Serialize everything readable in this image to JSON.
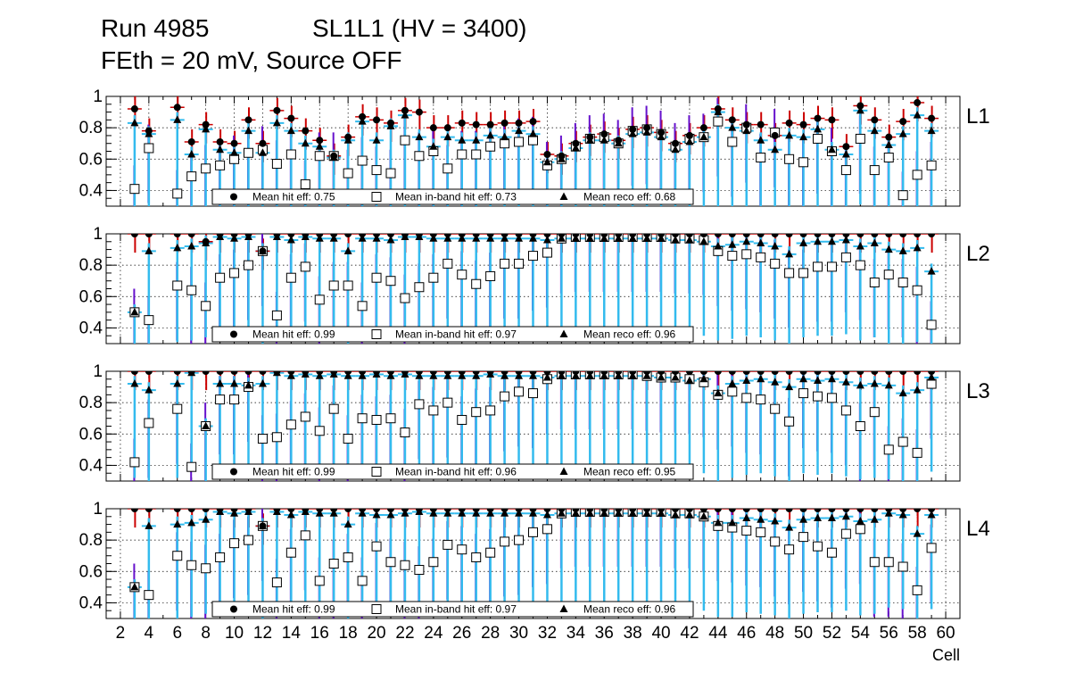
{
  "title_line1_left": "Run 4985",
  "title_line1_right": "SL1L1 (HV = 3400)",
  "title_line2": "FEth = 20 mV, Source OFF",
  "colors": {
    "hit": "#000000",
    "inband": "#ffffff",
    "reco": "#000000",
    "err_red": "#cc0000",
    "err_cyan": "#33bbee",
    "err_purple": "#6611cc",
    "grid": "#000000"
  },
  "chart_data": {
    "type": "scatter",
    "xlabel": "Cell",
    "xlim": [
      1,
      61
    ],
    "x_ticks": [
      2,
      4,
      6,
      8,
      10,
      12,
      14,
      16,
      18,
      20,
      22,
      24,
      26,
      28,
      30,
      32,
      34,
      36,
      38,
      40,
      42,
      44,
      46,
      48,
      50,
      52,
      54,
      56,
      58,
      60
    ],
    "ylim": [
      0.3,
      1.0
    ],
    "y_ticks": [
      0.4,
      0.6,
      0.8,
      1
    ],
    "y_tick_labels": [
      "0.4",
      "0.6",
      "0.8",
      "1"
    ],
    "cells": [
      3,
      4,
      6,
      7,
      8,
      9,
      10,
      11,
      12,
      13,
      14,
      15,
      16,
      17,
      18,
      19,
      20,
      21,
      22,
      23,
      24,
      25,
      26,
      27,
      28,
      29,
      30,
      31,
      32,
      33,
      34,
      35,
      36,
      37,
      38,
      39,
      40,
      41,
      42,
      43,
      44,
      45,
      46,
      47,
      48,
      49,
      50,
      51,
      52,
      53,
      54,
      55,
      56,
      57,
      58,
      59
    ],
    "panels": [
      {
        "label": "L1",
        "legend": {
          "hit": "Mean hit  eff: 0.75",
          "inband": "Mean in-band hit eff: 0.73",
          "reco": "Mean reco eff: 0.68"
        },
        "hit": [
          0.92,
          0.78,
          0.93,
          0.71,
          0.82,
          0.71,
          0.7,
          0.85,
          0.7,
          0.91,
          0.86,
          0.78,
          0.72,
          0.62,
          0.74,
          0.87,
          0.85,
          0.83,
          0.91,
          0.9,
          0.8,
          0.8,
          0.83,
          0.82,
          0.82,
          0.83,
          0.83,
          0.84,
          0.63,
          0.62,
          0.7,
          0.74,
          0.76,
          0.72,
          0.79,
          0.8,
          0.77,
          0.7,
          0.75,
          0.8,
          0.92,
          0.85,
          0.82,
          0.82,
          0.75,
          0.83,
          0.82,
          0.86,
          0.85,
          0.68,
          0.94,
          0.85,
          0.74,
          0.84,
          0.96,
          0.86
        ],
        "inband": [
          0.41,
          0.67,
          0.38,
          0.49,
          0.54,
          0.56,
          0.6,
          0.64,
          0.66,
          0.57,
          0.63,
          0.44,
          0.62,
          0.62,
          0.51,
          0.59,
          0.53,
          0.51,
          0.72,
          0.62,
          0.65,
          0.54,
          0.63,
          0.63,
          0.68,
          0.7,
          0.71,
          0.72,
          0.56,
          0.6,
          0.68,
          0.73,
          0.74,
          0.7,
          0.78,
          0.79,
          0.76,
          0.68,
          0.73,
          0.74,
          0.84,
          0.71,
          0.8,
          0.61,
          0.77,
          0.6,
          0.58,
          0.73,
          0.65,
          0.53,
          0.73,
          0.53,
          0.61,
          0.37,
          0.5,
          0.56
        ],
        "reco": [
          0.83,
          0.76,
          0.85,
          0.63,
          0.79,
          0.66,
          0.64,
          0.78,
          0.64,
          0.83,
          0.78,
          0.7,
          0.68,
          0.61,
          0.72,
          0.84,
          0.72,
          0.81,
          0.88,
          0.74,
          0.68,
          0.74,
          0.72,
          0.72,
          0.75,
          0.74,
          0.78,
          0.76,
          0.58,
          0.6,
          0.67,
          0.72,
          0.72,
          0.7,
          0.76,
          0.77,
          0.74,
          0.66,
          0.71,
          0.74,
          0.9,
          0.8,
          0.78,
          0.72,
          0.66,
          0.75,
          0.74,
          0.79,
          0.66,
          0.63,
          0.91,
          0.78,
          0.69,
          0.76,
          0.88,
          0.78
        ]
      },
      {
        "label": "L2",
        "legend": {
          "hit": "Mean hit  eff: 0.99",
          "inband": "Mean in-band hit eff: 0.97",
          "reco": "Mean reco eff: 0.96"
        },
        "hit": [
          1,
          1,
          1,
          1,
          0.95,
          1,
          1,
          1,
          0.89,
          1,
          1,
          1,
          1,
          1,
          1,
          1,
          1,
          1,
          1,
          1,
          1,
          1,
          1,
          1,
          1,
          1,
          1,
          1,
          1,
          1,
          1,
          1,
          1,
          1,
          1,
          1,
          1,
          1,
          1,
          1,
          1,
          1,
          1,
          1,
          1,
          1,
          1,
          1,
          1,
          1,
          1,
          1,
          1,
          1,
          1,
          1
        ],
        "inband": [
          0.5,
          0.45,
          0.67,
          0.64,
          0.54,
          0.72,
          0.75,
          0.8,
          0.89,
          0.48,
          0.72,
          0.79,
          0.58,
          0.67,
          0.67,
          0.54,
          0.72,
          0.7,
          0.59,
          0.66,
          0.72,
          0.81,
          0.74,
          0.68,
          0.73,
          0.81,
          0.81,
          0.86,
          0.88,
          0.97,
          0.98,
          0.98,
          0.98,
          0.98,
          0.98,
          0.98,
          0.98,
          0.97,
          0.97,
          0.96,
          0.89,
          0.86,
          0.87,
          0.85,
          0.81,
          0.75,
          0.75,
          0.79,
          0.79,
          0.85,
          0.8,
          0.69,
          0.74,
          0.69,
          0.64,
          0.42
        ],
        "reco": [
          0.5,
          0.89,
          0.91,
          0.92,
          0.94,
          0.98,
          0.97,
          0.98,
          0.89,
          0.98,
          0.96,
          0.98,
          0.97,
          0.97,
          0.89,
          0.97,
          0.97,
          0.96,
          0.98,
          0.98,
          0.97,
          0.97,
          0.97,
          0.97,
          0.97,
          0.97,
          0.97,
          0.97,
          0.96,
          0.97,
          0.97,
          0.97,
          0.97,
          0.97,
          0.97,
          0.97,
          0.97,
          0.96,
          0.96,
          0.95,
          0.92,
          0.93,
          0.95,
          0.94,
          0.92,
          0.87,
          0.94,
          0.95,
          0.95,
          0.96,
          0.92,
          0.94,
          0.9,
          0.89,
          0.91,
          0.76
        ]
      },
      {
        "label": "L3",
        "legend": {
          "hit": "Mean hit  eff: 0.99",
          "inband": "Mean in-band hit eff: 0.96",
          "reco": "Mean reco eff: 0.95"
        },
        "hit": [
          1,
          1,
          1,
          1,
          1,
          1,
          1,
          1,
          1,
          1,
          1,
          1,
          1,
          1,
          1,
          1,
          1,
          1,
          1,
          1,
          1,
          1,
          1,
          1,
          1,
          1,
          1,
          1,
          1,
          1,
          1,
          1,
          1,
          1,
          1,
          1,
          1,
          1,
          1,
          1,
          1,
          1,
          1,
          1,
          1,
          1,
          1,
          1,
          1,
          1,
          1,
          1,
          1,
          1,
          1,
          1
        ],
        "inband": [
          0.42,
          0.67,
          0.76,
          0.39,
          0.65,
          0.82,
          0.82,
          0.9,
          0.57,
          0.58,
          0.66,
          0.71,
          0.62,
          0.76,
          0.57,
          0.7,
          0.69,
          0.7,
          0.61,
          0.79,
          0.75,
          0.8,
          0.69,
          0.74,
          0.75,
          0.84,
          0.87,
          0.86,
          0.95,
          0.98,
          0.98,
          0.98,
          0.98,
          0.98,
          0.98,
          0.97,
          0.96,
          0.96,
          0.95,
          0.93,
          0.85,
          0.87,
          0.83,
          0.82,
          0.76,
          0.68,
          0.86,
          0.84,
          0.83,
          0.75,
          0.65,
          0.74,
          0.5,
          0.55,
          0.48,
          0.92
        ],
        "reco": [
          0.92,
          0.88,
          0.92,
          0.99,
          0.65,
          0.92,
          0.92,
          0.91,
          0.92,
          0.99,
          0.97,
          0.98,
          0.97,
          0.98,
          0.97,
          0.97,
          0.98,
          0.97,
          0.98,
          0.97,
          0.97,
          0.97,
          0.97,
          0.97,
          0.98,
          0.97,
          0.97,
          0.97,
          0.96,
          0.97,
          0.97,
          0.97,
          0.97,
          0.97,
          0.97,
          0.97,
          0.96,
          0.96,
          0.94,
          0.95,
          0.86,
          0.92,
          0.94,
          0.95,
          0.93,
          0.9,
          0.95,
          0.94,
          0.95,
          0.93,
          0.91,
          0.92,
          0.91,
          0.86,
          0.88,
          0.96
        ]
      },
      {
        "label": "L4",
        "legend": {
          "hit": "Mean hit  eff: 0.99",
          "inband": "Mean in-band hit eff: 0.97",
          "reco": "Mean reco eff: 0.96"
        },
        "hit": [
          1,
          1,
          1,
          1,
          1,
          1,
          1,
          1,
          0.89,
          1,
          1,
          1,
          1,
          1,
          1,
          1,
          1,
          1,
          1,
          1,
          1,
          1,
          1,
          1,
          1,
          1,
          1,
          1,
          1,
          1,
          1,
          1,
          1,
          1,
          1,
          1,
          1,
          1,
          1,
          1,
          1,
          1,
          1,
          1,
          1,
          1,
          1,
          1,
          1,
          1,
          1,
          1,
          1,
          1,
          1,
          1
        ],
        "inband": [
          0.5,
          0.45,
          0.7,
          0.64,
          0.62,
          0.69,
          0.78,
          0.8,
          0.89,
          0.53,
          0.72,
          0.83,
          0.54,
          0.65,
          0.69,
          0.54,
          0.76,
          0.66,
          0.64,
          0.61,
          0.66,
          0.77,
          0.74,
          0.69,
          0.72,
          0.79,
          0.8,
          0.85,
          0.87,
          0.97,
          0.98,
          0.98,
          0.98,
          0.98,
          0.98,
          0.98,
          0.98,
          0.97,
          0.97,
          0.95,
          0.89,
          0.88,
          0.86,
          0.85,
          0.79,
          0.74,
          0.82,
          0.76,
          0.72,
          0.84,
          0.87,
          0.66,
          0.66,
          0.63,
          0.48,
          0.75
        ],
        "reco": [
          0.5,
          0.89,
          0.9,
          0.91,
          0.93,
          0.98,
          0.97,
          0.98,
          0.89,
          0.98,
          0.96,
          0.98,
          0.97,
          0.97,
          0.9,
          0.97,
          0.96,
          0.96,
          0.97,
          0.98,
          0.97,
          0.97,
          0.97,
          0.97,
          0.97,
          0.97,
          0.97,
          0.97,
          0.96,
          0.97,
          0.97,
          0.97,
          0.97,
          0.97,
          0.97,
          0.97,
          0.97,
          0.96,
          0.96,
          0.95,
          0.91,
          0.91,
          0.94,
          0.93,
          0.92,
          0.88,
          0.93,
          0.94,
          0.94,
          0.95,
          0.92,
          0.93,
          0.97,
          0.96,
          0.84,
          0.96
        ]
      }
    ]
  }
}
